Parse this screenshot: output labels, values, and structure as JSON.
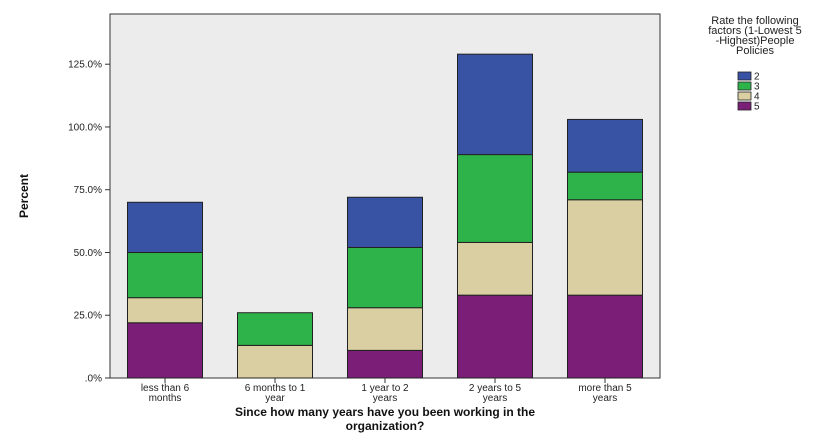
{
  "chart_data": {
    "type": "bar",
    "stacked": true,
    "categories": [
      [
        "less than 6",
        "months"
      ],
      [
        "6 months to 1",
        "year"
      ],
      [
        "1 year to 2",
        "years"
      ],
      [
        "2 years to 5",
        "years"
      ],
      [
        "more than 5",
        "years"
      ]
    ],
    "series": [
      {
        "name": "5",
        "color": "#7a1e78",
        "values": [
          22,
          0,
          11,
          33,
          33
        ]
      },
      {
        "name": "4",
        "color": "#d9cfa2",
        "values": [
          10,
          13,
          17,
          21,
          38
        ]
      },
      {
        "name": "3",
        "color": "#2db34a",
        "values": [
          18,
          13,
          24,
          35,
          11
        ]
      },
      {
        "name": "2",
        "color": "#3953a4",
        "values": [
          20,
          0,
          20,
          40,
          21
        ]
      }
    ],
    "xlabel": [
      "Since how many years have you been working in the",
      "organization?"
    ],
    "ylabel": "Percent",
    "ylim": [
      0,
      145
    ],
    "yticks": [
      0,
      25,
      50,
      75,
      100,
      125
    ],
    "ytick_labels": [
      ".0%",
      "25.0%",
      "50.0%",
      "75.0%",
      "100.0%",
      "125.0%"
    ],
    "legend": {
      "title": [
        "Rate the following",
        "factors (1-Lowest 5",
        "-Highest)People",
        "Policies"
      ],
      "items": [
        "2",
        "3",
        "4",
        "5"
      ],
      "placement": "top-right"
    },
    "plot_background": "#ececec",
    "grid": false
  }
}
